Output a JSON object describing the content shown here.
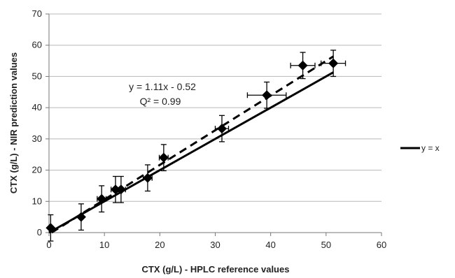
{
  "chart_data": {
    "type": "scatter",
    "xlabel": "CTX (g/L) - HPLC reference values",
    "ylabel": "CTX (g/L) - NIR prediction values",
    "xlim": [
      0,
      60
    ],
    "ylim": [
      0,
      70
    ],
    "x_ticks": [
      0,
      10,
      20,
      30,
      40,
      50,
      60
    ],
    "y_ticks": [
      0,
      10,
      20,
      30,
      40,
      50,
      60,
      70
    ],
    "grid": "horizontal",
    "legend": {
      "position": "right",
      "entries": [
        {
          "label": "y = x",
          "style": "solid"
        }
      ]
    },
    "annotation": {
      "equation": "y = 1.11x - 0.52",
      "q2": "Q² = 0.99"
    },
    "points": [
      {
        "x": 0.3,
        "y": 1.5,
        "x_err": 0,
        "y_err": 4.2
      },
      {
        "x": 5.8,
        "y": 5.0,
        "x_err": 0,
        "y_err": 4.2
      },
      {
        "x": 9.5,
        "y": 10.8,
        "x_err": 0.8,
        "y_err": 4.2
      },
      {
        "x": 12.0,
        "y": 13.8,
        "x_err": 0.8,
        "y_err": 4.2
      },
      {
        "x": 13.0,
        "y": 13.8,
        "x_err": 0.8,
        "y_err": 4.2
      },
      {
        "x": 17.8,
        "y": 17.5,
        "x_err": 0.8,
        "y_err": 4.2
      },
      {
        "x": 20.7,
        "y": 24.0,
        "x_err": 0.8,
        "y_err": 4.2
      },
      {
        "x": 31.2,
        "y": 33.3,
        "x_err": 1.2,
        "y_err": 4.2
      },
      {
        "x": 39.3,
        "y": 44.0,
        "x_err": 3.5,
        "y_err": 4.2
      },
      {
        "x": 45.8,
        "y": 53.5,
        "x_err": 2.2,
        "y_err": 4.2
      },
      {
        "x": 51.3,
        "y": 54.2,
        "x_err": 2.2,
        "y_err": 4.2
      }
    ],
    "lines": [
      {
        "label": "y = x",
        "style": "solid",
        "x": [
          0,
          51.3
        ],
        "y": [
          0,
          51.3
        ]
      },
      {
        "label": "y = 1.11x - 0.52",
        "style": "dashed",
        "x": [
          0,
          51.3
        ],
        "y": [
          -0.52,
          56.4
        ]
      }
    ]
  }
}
